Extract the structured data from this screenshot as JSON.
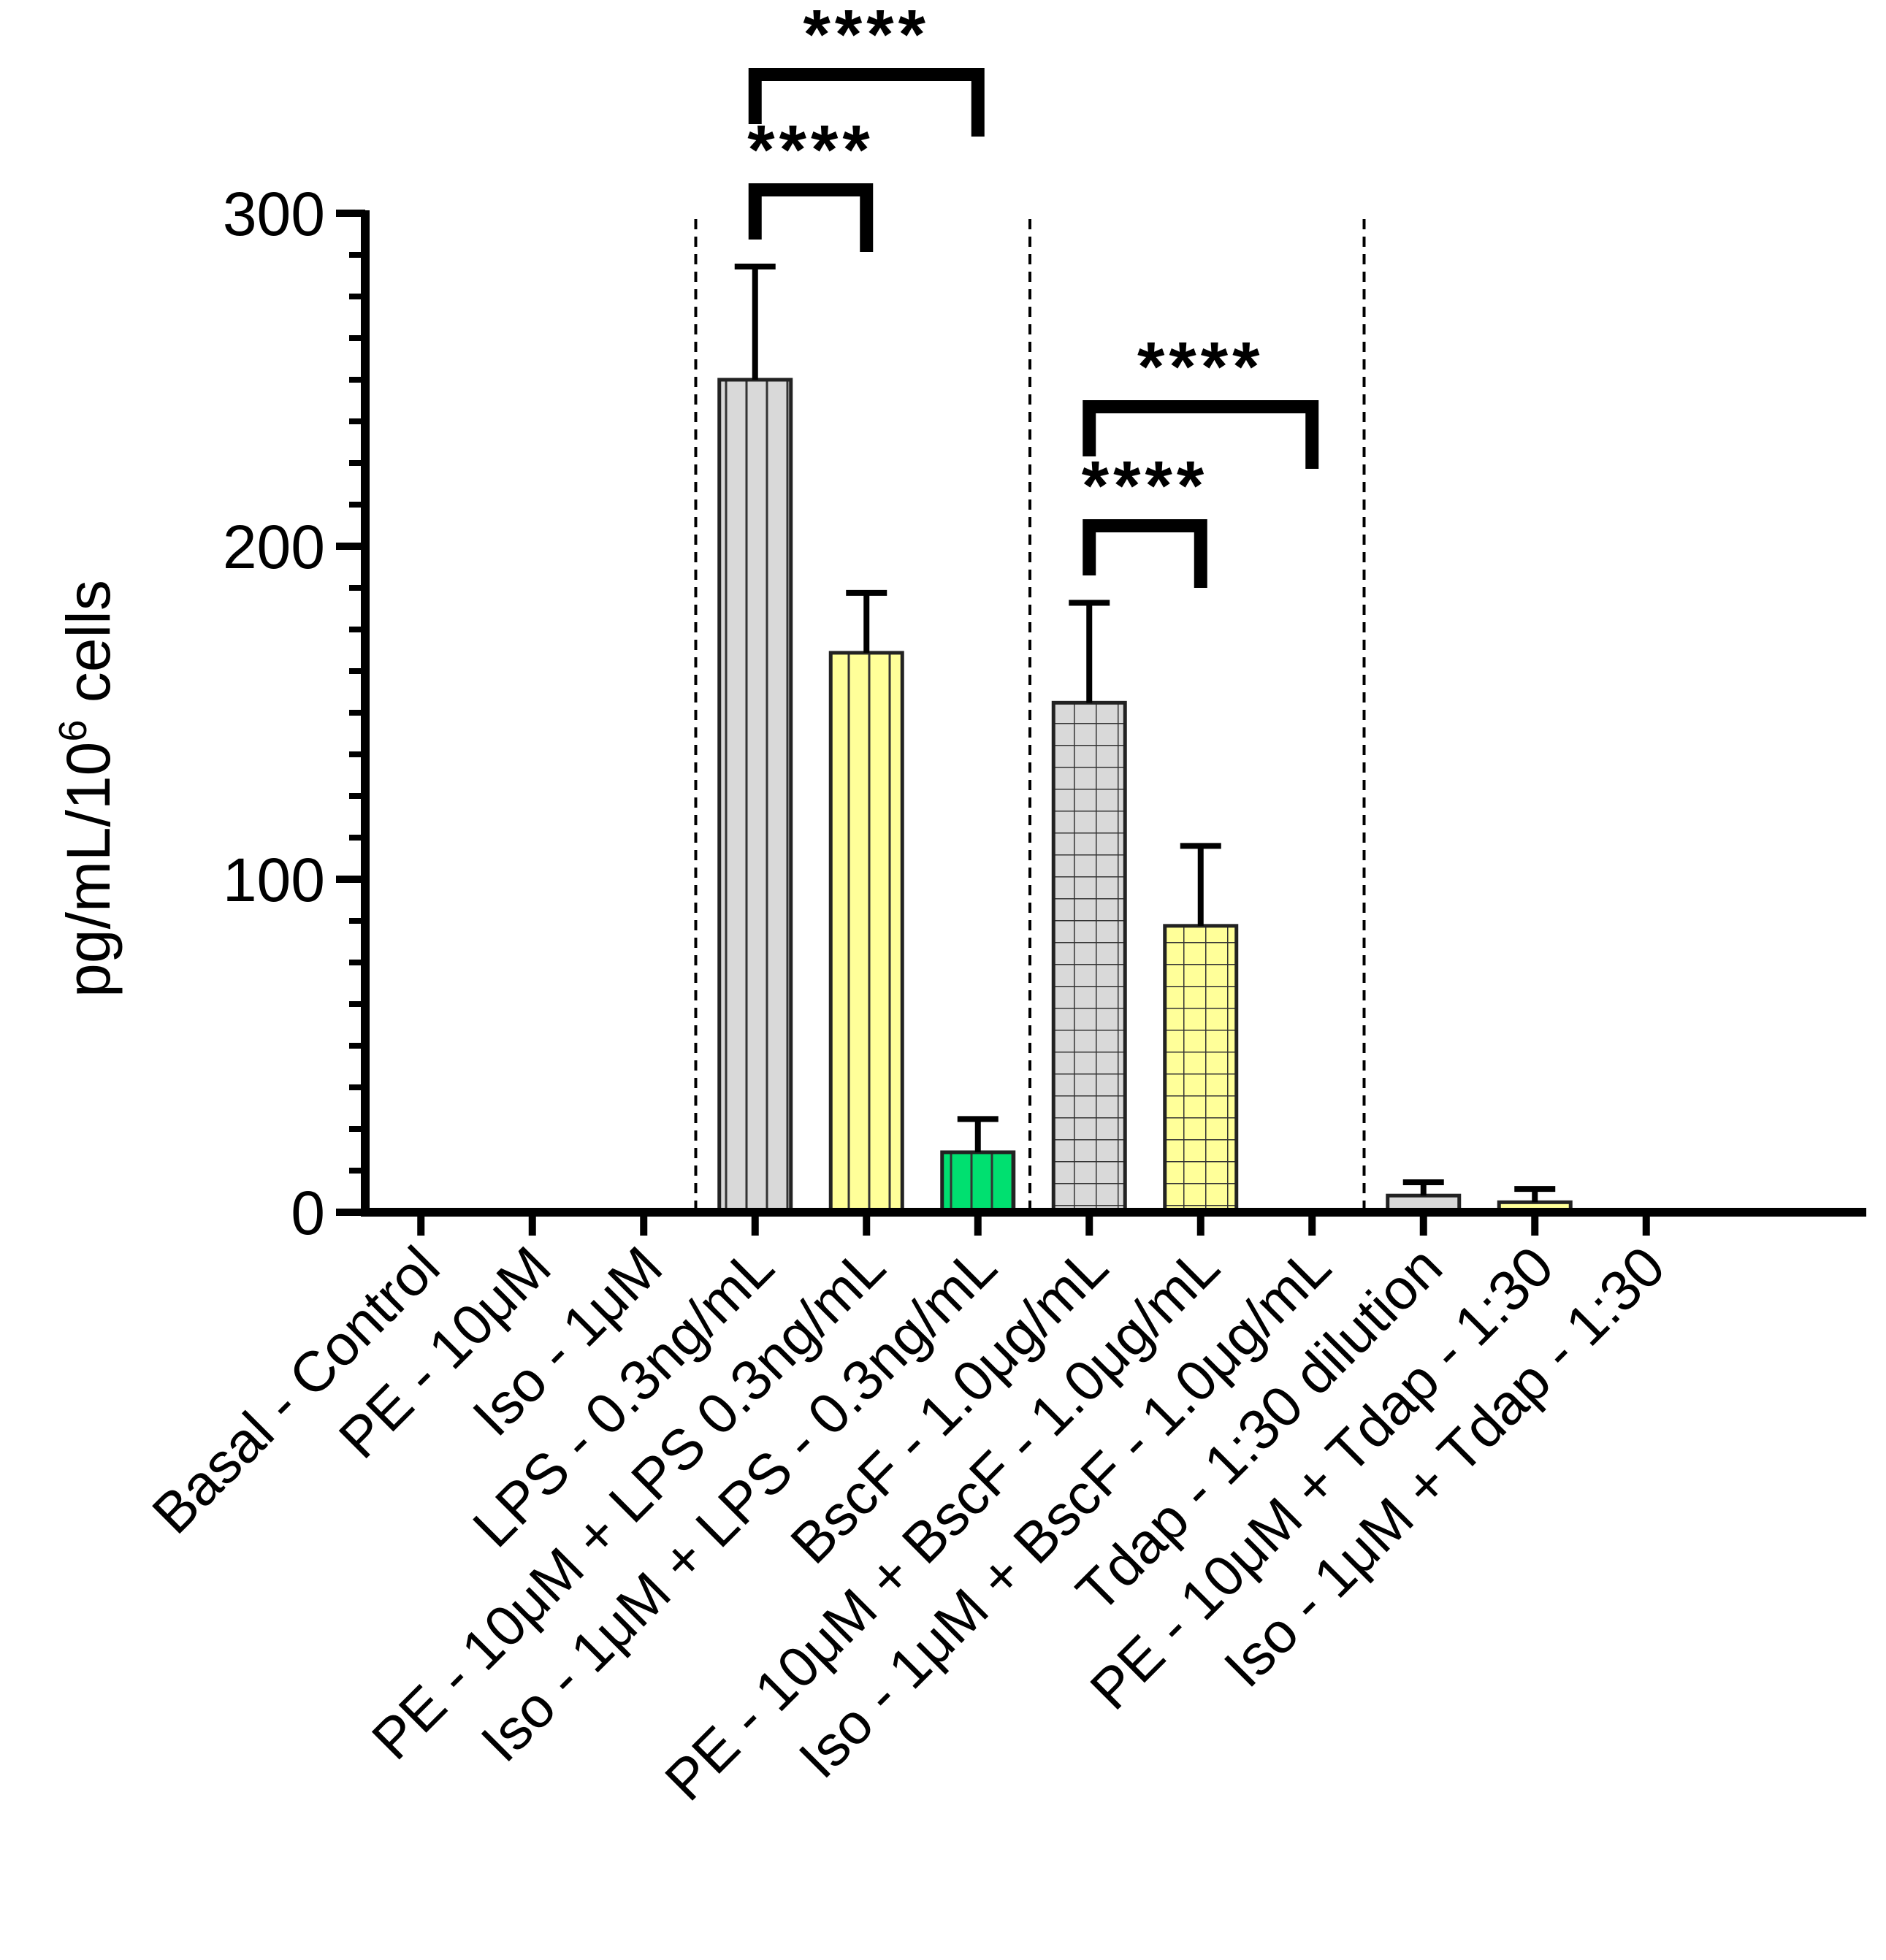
{
  "chart_data": {
    "type": "bar",
    "ylabel": "pg/mL/10",
    "ylabel_sup": "6",
    "ylabel_suffix": " cells",
    "ylim": [
      0,
      300
    ],
    "yticks": [
      "0",
      "100",
      "200",
      "300"
    ],
    "ytick_values": [
      0,
      100,
      200,
      300
    ],
    "minor_tick_step": 12.5,
    "categories": [
      "Basal - Control",
      "PE - 10μM",
      "Iso - 1μM",
      "LPS - 0.3ng/mL",
      "PE - 10μM + LPS 0.3ng/mL",
      "Iso - 1μM + LPS - 0.3ng/mL",
      "BscF - 1.0μg/mL",
      "PE - 10μM + BscF - 1.0μg/mL",
      "Iso - 1μM + BscF - 1.0μg/mL",
      "Tdap - 1:30 dilution",
      "PE - 10μM + Tdap - 1:30",
      "Iso - 1μM + Tdap - 1:30"
    ],
    "values": [
      0,
      0,
      0,
      250,
      168,
      18,
      153,
      86,
      0,
      5,
      3,
      0
    ],
    "errors": [
      0,
      0,
      0,
      34,
      18,
      10,
      30,
      24,
      0,
      4,
      4,
      0
    ],
    "bar_colors": [
      "#d9d9d9",
      "#ffff99",
      "#00e070",
      "#d9d9d9",
      "#ffff99",
      "#00e070",
      "#d9d9d9",
      "#ffff99",
      "#00e070",
      "#d9d9d9",
      "#ffff99",
      "#00e070"
    ],
    "bar_patterns": [
      "vertical",
      "vertical",
      "vertical",
      "vertical",
      "vertical",
      "vertical",
      "grid",
      "grid",
      "grid",
      "none",
      "none",
      "none"
    ],
    "group_separators_after": [
      2,
      5,
      8
    ],
    "significance": [
      {
        "from": 3,
        "to": 4,
        "label": "****"
      },
      {
        "from": 3,
        "to": 5,
        "label": "****"
      },
      {
        "from": 6,
        "to": 7,
        "label": "****"
      },
      {
        "from": 6,
        "to": 8,
        "label": "****"
      }
    ]
  }
}
